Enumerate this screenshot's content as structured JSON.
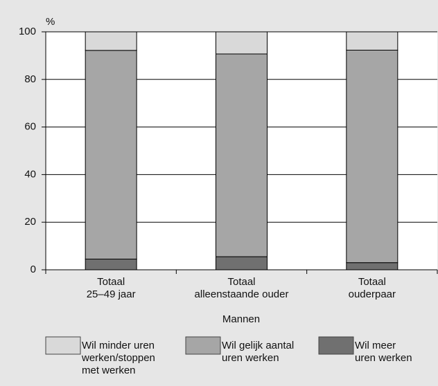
{
  "chart_data": {
    "type": "stacked_bar",
    "y_unit": "%",
    "x_label": "Mannen",
    "categories": [
      [
        "Totaal",
        "25–49 jaar"
      ],
      [
        "Totaal",
        "alleenstaande ouder"
      ],
      [
        "Totaal",
        "ouderpaar"
      ]
    ],
    "series": [
      {
        "name": [
          "Wil meer",
          "uren werken"
        ],
        "color": "#707070",
        "values": [
          4.5,
          5.5,
          3
        ]
      },
      {
        "name": [
          "Wil gelijk aantal",
          "uren werken"
        ],
        "color": "#a6a6a6",
        "values": [
          87.7,
          85.2,
          89.3
        ]
      },
      {
        "name": [
          "Wil minder uren",
          "werken/stoppen",
          "met werken"
        ],
        "color": "#d9d9d9",
        "values": [
          7.8,
          9.3,
          7.7
        ]
      }
    ],
    "ylim": [
      0,
      100
    ],
    "yticks": [
      0,
      20,
      40,
      60,
      80,
      100
    ],
    "grid": true
  }
}
